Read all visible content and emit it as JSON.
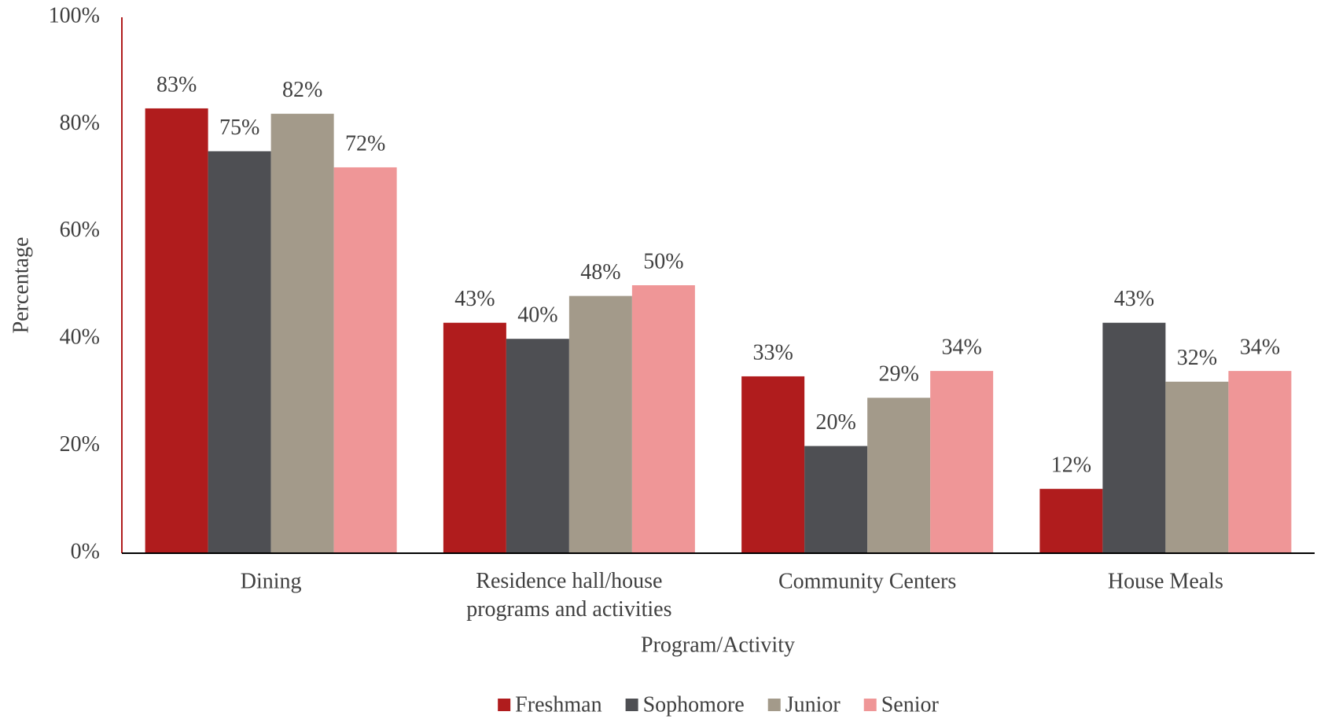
{
  "chart_data": {
    "type": "bar",
    "xlabel": "Program/Activity",
    "ylabel": "Percentage",
    "categories": [
      "Dining",
      "Residence hall/house programs and activities",
      "Community Centers",
      "House Meals"
    ],
    "series": [
      {
        "name": "Freshman",
        "color": "#b01c1d",
        "values": [
          83,
          43,
          33,
          12
        ],
        "value_labels": [
          "83%",
          "43%",
          "33%",
          "12%"
        ]
      },
      {
        "name": "Sophomore",
        "color": "#4e4f53",
        "values": [
          75,
          40,
          20,
          43
        ],
        "value_labels": [
          "75%",
          "40%",
          "20%",
          "43%"
        ]
      },
      {
        "name": "Junior",
        "color": "#a39a8a",
        "values": [
          82,
          48,
          29,
          32
        ],
        "value_labels": [
          "82%",
          "48%",
          "29%",
          "32%"
        ]
      },
      {
        "name": "Senior",
        "color": "#ef9697",
        "values": [
          72,
          50,
          34,
          34
        ],
        "value_labels": [
          "72%",
          "50%",
          "34%",
          "34%"
        ]
      }
    ],
    "ylim": [
      0,
      100
    ],
    "yticks": [
      {
        "value": 0,
        "label": "0%"
      },
      {
        "value": 20,
        "label": "20%"
      },
      {
        "value": 40,
        "label": "40%"
      },
      {
        "value": 60,
        "label": "60%"
      },
      {
        "value": 80,
        "label": "80%"
      },
      {
        "value": 100,
        "label": "100%"
      }
    ],
    "grid": false,
    "legend": "bottom"
  }
}
